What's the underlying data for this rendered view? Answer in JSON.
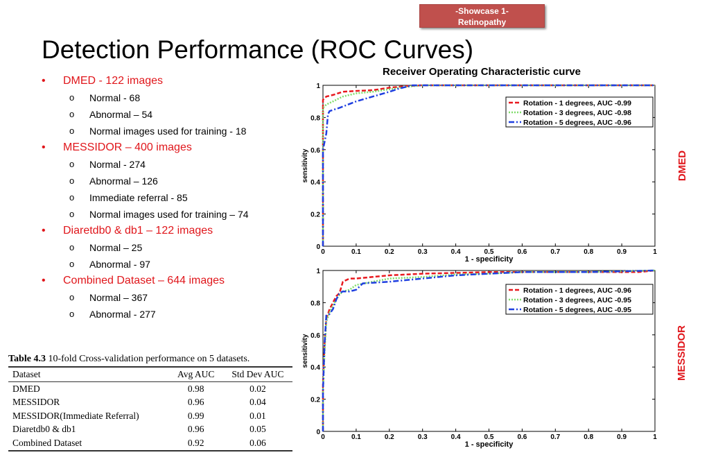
{
  "badge": {
    "line1": "-Showcase 1-",
    "line2": "Retinopathy"
  },
  "title": "Detection Performance (ROC Curves)",
  "chart_title": "Receiver Operating Characteristic curve",
  "bullets": [
    {
      "label": "DMED  - 122 images",
      "items": [
        "Normal - 68",
        "Abnormal – 54",
        "Normal images used for training - 18"
      ]
    },
    {
      "label": "MESSIDOR – 400 images",
      "items": [
        "Normal - 274",
        "Abnormal – 126",
        "Immediate referral -  85",
        "Normal images used for training – 74"
      ]
    },
    {
      "label": "Diaretdb0 & db1 – 122 images",
      "items": [
        "Normal – 25",
        "Abnormal - 97"
      ]
    },
    {
      "label": "Combined Dataset – 644 images",
      "items": [
        "Normal –  367",
        "Abnormal - 277"
      ]
    }
  ],
  "bullet_symbol": "•",
  "sub_bullet_symbol": "o",
  "table": {
    "caption_bold": "Table 4.3",
    "caption_rest": " 10-fold Cross-validation performance on 5 datasets.",
    "headers": [
      "Dataset",
      "Avg AUC",
      "Std Dev AUC"
    ],
    "rows": [
      [
        "DMED",
        "0.98",
        "0.02"
      ],
      [
        "MESSIDOR",
        "0.96",
        "0.04"
      ],
      [
        "MESSIDOR(Immediate Referral)",
        "0.99",
        "0.01"
      ],
      [
        "Diaretdb0 & db1",
        "0.96",
        "0.05"
      ],
      [
        "Combined Dataset",
        "0.92",
        "0.06"
      ]
    ]
  },
  "side_labels": {
    "dmed": "DMED",
    "messidor": "MESSIDOR"
  },
  "colors": {
    "accent_red": "#e0161b",
    "badge": "#c0504d",
    "series": [
      "#e8191e",
      "#7fdc6a",
      "#1f3fe0"
    ]
  },
  "chart_data": [
    {
      "type": "line",
      "xlabel": "1 - specificity",
      "ylabel": "sensitivity",
      "xlim": [
        0,
        1
      ],
      "ylim": [
        0,
        1
      ],
      "xticks": [
        "0",
        "0.1",
        "0.2",
        "0.3",
        "0.4",
        "0.5",
        "0.6",
        "0.7",
        "0.8",
        "0.9",
        "1"
      ],
      "yticks": [
        "0",
        "0.2",
        "0.4",
        "0.6",
        "0.8",
        "1"
      ],
      "grid": false,
      "legend_position": "top-right",
      "series": [
        {
          "name": "Rotation - 1 degrees, AUC -0.99",
          "color": "#e8191e",
          "dash": "dashed",
          "x": [
            0,
            0,
            0.01,
            0.03,
            0.06,
            0.1,
            0.15,
            0.2,
            0.25,
            0.3,
            1
          ],
          "y": [
            0,
            0.91,
            0.93,
            0.94,
            0.96,
            0.965,
            0.97,
            0.985,
            0.995,
            1,
            1
          ]
        },
        {
          "name": "Rotation - 3 degrees, AUC -0.98",
          "color": "#7fdc6a",
          "dash": "dotted",
          "x": [
            0,
            0,
            0.01,
            0.03,
            0.06,
            0.1,
            0.15,
            0.2,
            0.25,
            0.3,
            1
          ],
          "y": [
            0,
            0.86,
            0.88,
            0.9,
            0.93,
            0.95,
            0.96,
            0.975,
            0.99,
            1,
            1
          ]
        },
        {
          "name": "Rotation - 5 degrees, AUC -0.96",
          "color": "#1f3fe0",
          "dash": "dashdot",
          "x": [
            0,
            0,
            0.01,
            0.015,
            0.02,
            0.05,
            0.1,
            0.15,
            0.2,
            0.23,
            0.25,
            0.27,
            1
          ],
          "y": [
            0,
            0.6,
            0.7,
            0.82,
            0.84,
            0.86,
            0.9,
            0.93,
            0.96,
            0.98,
            0.99,
            1,
            1
          ]
        }
      ]
    },
    {
      "type": "line",
      "xlabel": "1 - specificity",
      "ylabel": "sensitivity",
      "xlim": [
        0,
        1
      ],
      "ylim": [
        0,
        1
      ],
      "xticks": [
        "0",
        "0.1",
        "0.2",
        "0.3",
        "0.4",
        "0.5",
        "0.6",
        "0.7",
        "0.8",
        "0.9",
        "1"
      ],
      "yticks": [
        "0",
        "0.2",
        "0.4",
        "0.6",
        "0.8",
        "1"
      ],
      "grid": false,
      "legend_position": "top-right",
      "series": [
        {
          "name": "Rotation - 1 degrees, AUC -0.96",
          "color": "#e8191e",
          "dash": "dashed",
          "x": [
            0,
            0,
            0.005,
            0.01,
            0.02,
            0.03,
            0.04,
            0.05,
            0.06,
            0.08,
            0.1,
            0.15,
            0.2,
            0.3,
            0.4,
            0.5,
            0.6,
            0.8,
            0.95,
            1
          ],
          "y": [
            0,
            0.3,
            0.55,
            0.7,
            0.76,
            0.8,
            0.84,
            0.86,
            0.93,
            0.95,
            0.95,
            0.96,
            0.97,
            0.98,
            0.985,
            0.99,
            0.99,
            0.99,
            0.99,
            1
          ]
        },
        {
          "name": "Rotation - 3 degrees, AUC -0.95",
          "color": "#7fdc6a",
          "dash": "dotted",
          "x": [
            0,
            0,
            0.005,
            0.01,
            0.02,
            0.03,
            0.04,
            0.05,
            0.06,
            0.08,
            0.1,
            0.15,
            0.2,
            0.3,
            0.4,
            0.5,
            0.6,
            0.8,
            1
          ],
          "y": [
            0,
            0.25,
            0.5,
            0.68,
            0.74,
            0.78,
            0.82,
            0.85,
            0.87,
            0.88,
            0.91,
            0.93,
            0.95,
            0.96,
            0.975,
            0.98,
            0.99,
            0.99,
            1
          ]
        },
        {
          "name": "Rotation - 5 degrees, AUC -0.95",
          "color": "#1f3fe0",
          "dash": "dashdot",
          "x": [
            0,
            0,
            0.005,
            0.01,
            0.02,
            0.03,
            0.04,
            0.05,
            0.06,
            0.08,
            0.1,
            0.12,
            0.2,
            0.3,
            0.4,
            0.5,
            0.6,
            0.8,
            1
          ],
          "y": [
            0,
            0.25,
            0.55,
            0.72,
            0.73,
            0.76,
            0.82,
            0.86,
            0.87,
            0.87,
            0.88,
            0.92,
            0.93,
            0.95,
            0.97,
            0.98,
            0.99,
            0.99,
            1
          ]
        }
      ]
    }
  ]
}
